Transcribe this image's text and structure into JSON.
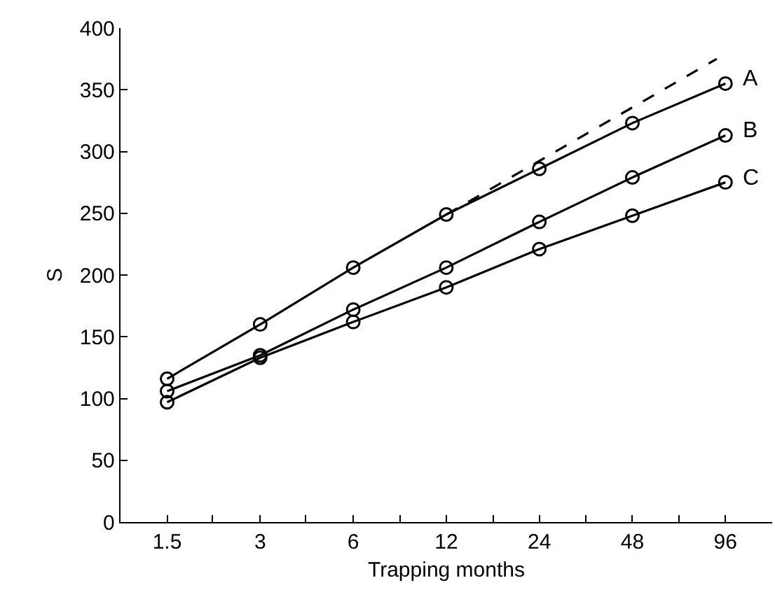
{
  "chart_data": {
    "type": "line",
    "xlabel": "Trapping months",
    "ylabel": "S",
    "log": "x",
    "x": [
      1.5,
      3,
      6,
      12,
      24,
      48,
      96
    ],
    "series": [
      {
        "name": "A",
        "color": "#000000",
        "marker": "circle",
        "line_style": "solid",
        "values": [
          116,
          160,
          206,
          249,
          286,
          323,
          355
        ]
      },
      {
        "name": "B",
        "color": "#000000",
        "marker": "circle",
        "line_style": "solid",
        "values": [
          106,
          135,
          172,
          206,
          243,
          279,
          313
        ]
      },
      {
        "name": "C",
        "color": "#000000",
        "marker": "circle",
        "line_style": "solid",
        "values": [
          97,
          133,
          162,
          190,
          221,
          248,
          275
        ]
      },
      {
        "color": "#000000",
        "marker": "none",
        "line_style": "dashed",
        "x": [
          12,
          90
        ],
        "values": [
          249,
          375
        ]
      }
    ],
    "xlim": [
      1.06,
      136
    ],
    "xticks": [
      1.5,
      {
        "value": 2.1,
        "label": null
      },
      3,
      {
        "value": 4.2,
        "label": null
      },
      6,
      {
        "value": 8.5,
        "label": null
      },
      12,
      {
        "value": 17,
        "label": null
      },
      24,
      {
        "value": 34,
        "label": null
      },
      48,
      {
        "value": 68,
        "label": null
      },
      96
    ],
    "ylim": [
      0,
      400
    ],
    "yticks": [
      0,
      50,
      100,
      150,
      200,
      250,
      300,
      350,
      400
    ]
  }
}
